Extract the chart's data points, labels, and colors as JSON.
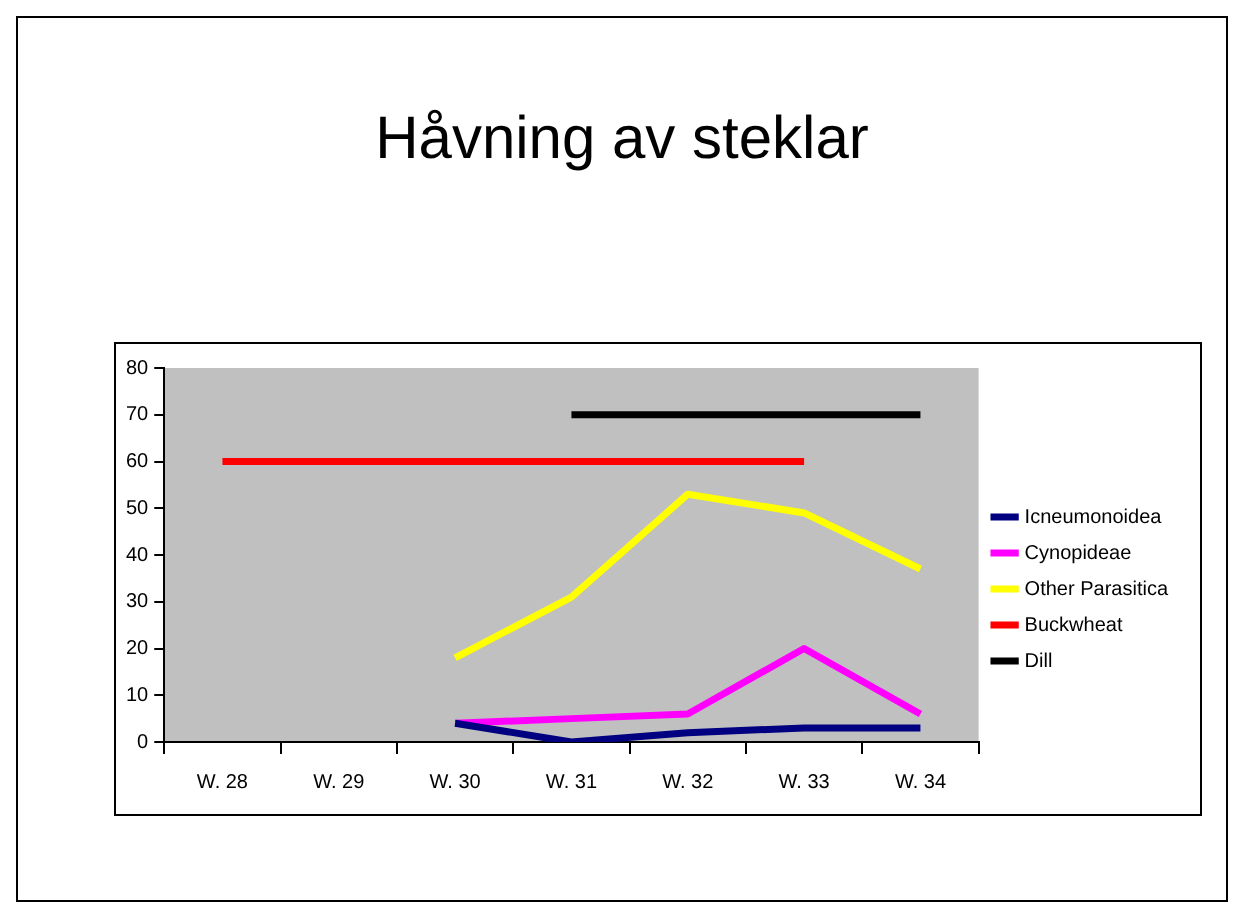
{
  "chart_data": {
    "type": "line",
    "title": "Håvning av steklar",
    "categories": [
      "W. 28",
      "W. 29",
      "W. 30",
      "W. 31",
      "W. 32",
      "W. 33",
      "W. 34"
    ],
    "series": [
      {
        "name": "Icneumonoidea",
        "color": "#000080",
        "values": [
          null,
          null,
          4,
          0,
          2,
          3,
          3
        ]
      },
      {
        "name": "Cynopideae",
        "color": "#ff00ff",
        "values": [
          null,
          null,
          4,
          5,
          6,
          20,
          6
        ]
      },
      {
        "name": "Other Parasitica",
        "color": "#ffff00",
        "values": [
          null,
          null,
          18,
          31,
          53,
          49,
          37
        ]
      },
      {
        "name": "Buckwheat",
        "color": "#ff0000",
        "values": [
          60,
          60,
          60,
          60,
          60,
          60,
          null
        ]
      },
      {
        "name": "Dill",
        "color": "#000000",
        "values": [
          null,
          null,
          null,
          70,
          70,
          70,
          70
        ]
      }
    ],
    "ylim": [
      0,
      80
    ],
    "yticks": [
      0,
      10,
      20,
      30,
      40,
      50,
      60,
      70,
      80
    ],
    "grid": false,
    "legend": "right",
    "marker": "none",
    "line_style": "solid"
  }
}
